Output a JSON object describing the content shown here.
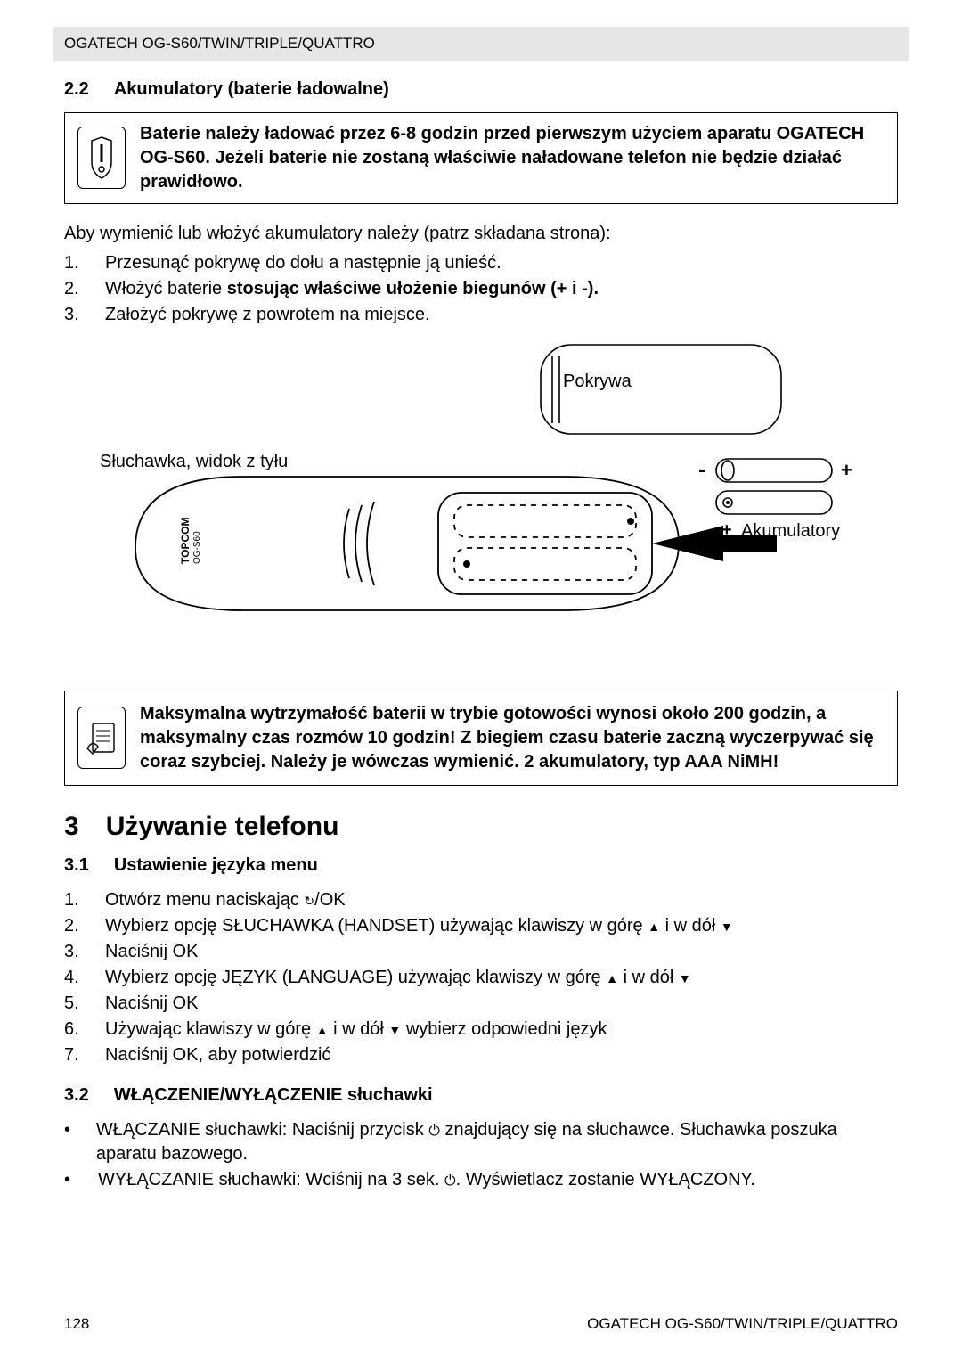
{
  "header": "OGATECH OG-S60/TWIN/TRIPLE/QUATTRO",
  "sec22": {
    "num": "2.2",
    "title": "Akumulatory (baterie ładowalne)"
  },
  "note1": "Baterie należy ładować przez 6-8 godzin przed pierwszym użyciem aparatu OGATECH OG-S60. Jeżeli baterie nie zostaną właściwie naładowane telefon nie będzie działać prawidłowo.",
  "intro": "Aby wymienić lub włożyć akumulatory należy (patrz składana strona):",
  "steps22": [
    {
      "n": "1.",
      "t": "Przesunąć pokrywę do dołu a następnie ją unieść."
    },
    {
      "n": "2.",
      "t_pre": "Włożyć baterie ",
      "t_bold": "stosując właściwe ułożenie biegunów (+ i -)."
    },
    {
      "n": "3.",
      "t": "Założyć pokrywę z powrotem na miejsce."
    }
  ],
  "diagram": {
    "cover": "Pokrywa",
    "handset_back": "Słuchawka, widok z tyłu",
    "batteries": "Akumulatory",
    "brand_small": "TOPCOM",
    "model_small": "OG-S60"
  },
  "info1": "Maksymalna wytrzymałość baterii w trybie gotowości wynosi około 200 godzin, a maksymalny czas rozmów 10 godzin! Z biegiem czasu baterie zaczną wyczerpywać się coraz szybciej. Należy je wówczas wymienić. 2 akumulatory, typ AAA NiMH!",
  "h1": {
    "num": "3",
    "title": "Używanie telefonu"
  },
  "sec31": {
    "num": "3.1",
    "title": "Ustawienie języka menu"
  },
  "steps31": [
    {
      "n": "1.",
      "parts": [
        "Otwórz menu naciskając ",
        {
          "sym": "redial"
        },
        "/OK"
      ]
    },
    {
      "n": "2.",
      "parts": [
        "Wybierz opcję SŁUCHAWKA (HANDSET) używając klawiszy w górę ",
        {
          "sym": "up"
        },
        " i w dół ",
        {
          "sym": "dn"
        }
      ]
    },
    {
      "n": "3.",
      "parts": [
        "Naciśnij OK"
      ]
    },
    {
      "n": "4.",
      "parts": [
        "Wybierz opcję JĘZYK (LANGUAGE) używając klawiszy w górę ",
        {
          "sym": "up"
        },
        " i w dół ",
        {
          "sym": "dn"
        }
      ]
    },
    {
      "n": "5.",
      "parts": [
        "Naciśnij OK"
      ]
    },
    {
      "n": "6.",
      "parts": [
        "Używając klawiszy w górę ",
        {
          "sym": "up"
        },
        " i w dół ",
        {
          "sym": "dn"
        },
        " wybierz odpowiedni język"
      ]
    },
    {
      "n": "7.",
      "parts": [
        "Naciśnij OK, aby potwierdzić"
      ]
    }
  ],
  "sec32": {
    "num": "3.2",
    "title": "WŁĄCZENIE/WYŁĄCZENIE słuchawki"
  },
  "bullets32": [
    {
      "parts": [
        "WŁĄCZANIE słuchawki: Naciśnij przycisk ",
        {
          "sym": "power"
        },
        " znajdujący się na słuchawce. Słuchawka poszuka aparatu bazowego."
      ]
    },
    {
      "parts": [
        "WYŁĄCZANIE słuchawki: Wciśnij na 3 sek. ",
        {
          "sym": "power"
        },
        ". Wyświetlacz zostanie WYŁĄCZONY."
      ]
    }
  ],
  "footer": {
    "page": "128",
    "right": "OGATECH OG-S60/TWIN/TRIPLE/QUATTRO"
  }
}
